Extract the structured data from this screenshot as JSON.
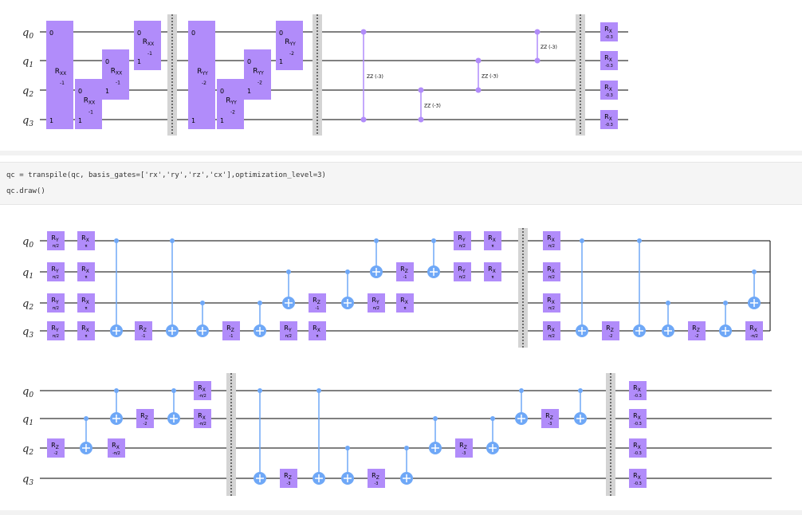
{
  "circuit1": {
    "qubit_labels": [
      "q0",
      "q1",
      "q2",
      "q3"
    ],
    "two_qubit_gates": [
      {
        "name": "RXX",
        "param": "-1",
        "q": [
          0,
          3
        ]
      },
      {
        "name": "RXX",
        "param": "-1",
        "q": [
          2,
          3
        ]
      },
      {
        "name": "RXX",
        "param": "-1",
        "q": [
          1,
          2
        ]
      },
      {
        "name": "RXX",
        "param": "-1",
        "q": [
          0,
          1
        ]
      },
      {
        "name": "RYY",
        "param": "-2",
        "q": [
          0,
          3
        ]
      },
      {
        "name": "RYY",
        "param": "-2",
        "q": [
          2,
          3
        ]
      },
      {
        "name": "RYY",
        "param": "-2",
        "q": [
          1,
          2
        ]
      },
      {
        "name": "RYY",
        "param": "-2",
        "q": [
          0,
          1
        ]
      }
    ],
    "zz_gates": [
      {
        "label": "ZZ (-3)",
        "q": [
          0,
          3
        ]
      },
      {
        "label": "ZZ (-3)",
        "q": [
          2,
          3
        ]
      },
      {
        "label": "ZZ (-3)",
        "q": [
          1,
          2
        ]
      },
      {
        "label": "ZZ (-3)",
        "q": [
          0,
          1
        ]
      }
    ],
    "final_rx": {
      "name": "RX",
      "param": "-0.3"
    }
  },
  "code": {
    "line1": "qc = transpile(qc, basis_gates=['rx','ry','rz','cx'],optimization_level=3)",
    "line2": "qc.draw()"
  },
  "circuit2_row1": {
    "qubit_labels": [
      "q0",
      "q1",
      "q2",
      "q3"
    ],
    "gates": [
      {
        "t": "g",
        "n": "RY",
        "p": "π/2",
        "q": 0,
        "c": 0
      },
      {
        "t": "g",
        "n": "RY",
        "p": "π/2",
        "q": 1,
        "c": 0
      },
      {
        "t": "g",
        "n": "RY",
        "p": "π/2",
        "q": 2,
        "c": 0
      },
      {
        "t": "g",
        "n": "RY",
        "p": "π/2",
        "q": 3,
        "c": 0
      },
      {
        "t": "g",
        "n": "RX",
        "p": "π",
        "q": 0,
        "c": 1
      },
      {
        "t": "g",
        "n": "RX",
        "p": "π",
        "q": 1,
        "c": 1
      },
      {
        "t": "g",
        "n": "RX",
        "p": "π",
        "q": 2,
        "c": 1
      },
      {
        "t": "g",
        "n": "RX",
        "p": "π",
        "q": 3,
        "c": 1
      },
      {
        "t": "cx",
        "ctrl": 0,
        "tgt": 3,
        "c": 2
      },
      {
        "t": "g",
        "n": "RZ",
        "p": "-1",
        "q": 3,
        "c": 3
      },
      {
        "t": "cx",
        "ctrl": 0,
        "tgt": 3,
        "c": 4
      },
      {
        "t": "cx",
        "ctrl": 2,
        "tgt": 3,
        "c": 5
      },
      {
        "t": "g",
        "n": "RZ",
        "p": "-1",
        "q": 3,
        "c": 6
      },
      {
        "t": "cx",
        "ctrl": 2,
        "tgt": 3,
        "c": 7
      },
      {
        "t": "cx",
        "ctrl": 1,
        "tgt": 2,
        "c": 8
      },
      {
        "t": "g",
        "n": "RY",
        "p": "π/2",
        "q": 3,
        "c": 8
      },
      {
        "t": "g",
        "n": "RZ",
        "p": "-1",
        "q": 2,
        "c": 9
      },
      {
        "t": "g",
        "n": "RX",
        "p": "π",
        "q": 3,
        "c": 9
      },
      {
        "t": "cx",
        "ctrl": 1,
        "tgt": 2,
        "c": 10
      },
      {
        "t": "cx",
        "ctrl": 0,
        "tgt": 1,
        "c": 11
      },
      {
        "t": "g",
        "n": "RY",
        "p": "π/2",
        "q": 2,
        "c": 11
      },
      {
        "t": "g",
        "n": "RZ",
        "p": "-1",
        "q": 1,
        "c": 12
      },
      {
        "t": "g",
        "n": "RX",
        "p": "π",
        "q": 2,
        "c": 12
      },
      {
        "t": "cx",
        "ctrl": 0,
        "tgt": 1,
        "c": 13
      },
      {
        "t": "g",
        "n": "RY",
        "p": "π/2",
        "q": 0,
        "c": 14
      },
      {
        "t": "g",
        "n": "RY",
        "p": "π/2",
        "q": 1,
        "c": 14
      },
      {
        "t": "g",
        "n": "RX",
        "p": "π",
        "q": 0,
        "c": 15
      },
      {
        "t": "g",
        "n": "RX",
        "p": "π",
        "q": 1,
        "c": 15
      },
      {
        "t": "barrier",
        "c": 16
      },
      {
        "t": "g",
        "n": "RX",
        "p": "π/2",
        "q": 0,
        "c": 17
      },
      {
        "t": "g",
        "n": "RX",
        "p": "π/2",
        "q": 1,
        "c": 17
      },
      {
        "t": "g",
        "n": "RX",
        "p": "π/2",
        "q": 2,
        "c": 17
      },
      {
        "t": "g",
        "n": "RX",
        "p": "π/2",
        "q": 3,
        "c": 17
      },
      {
        "t": "cx",
        "ctrl": 0,
        "tgt": 3,
        "c": 18
      },
      {
        "t": "g",
        "n": "RZ",
        "p": "-2",
        "q": 3,
        "c": 19
      },
      {
        "t": "cx",
        "ctrl": 0,
        "tgt": 3,
        "c": 20
      },
      {
        "t": "cx",
        "ctrl": 2,
        "tgt": 3,
        "c": 21
      },
      {
        "t": "g",
        "n": "RZ",
        "p": "-2",
        "q": 3,
        "c": 22
      },
      {
        "t": "cx",
        "ctrl": 2,
        "tgt": 3,
        "c": 23
      },
      {
        "t": "cx",
        "ctrl": 1,
        "tgt": 2,
        "c": 24
      },
      {
        "t": "g",
        "n": "RX",
        "p": "-π/2",
        "q": 3,
        "c": 24
      }
    ]
  },
  "circuit2_row2": {
    "qubit_labels": [
      "q0",
      "q1",
      "q2",
      "q3"
    ],
    "gates": [
      {
        "t": "g",
        "n": "RZ",
        "p": "-2",
        "q": 2,
        "c": 0
      },
      {
        "t": "cx",
        "ctrl": 1,
        "tgt": 2,
        "c": 1
      },
      {
        "t": "cx",
        "ctrl": 0,
        "tgt": 1,
        "c": 2
      },
      {
        "t": "g",
        "n": "RX",
        "p": "-π/2",
        "q": 2,
        "c": 2
      },
      {
        "t": "g",
        "n": "RZ",
        "p": "-2",
        "q": 1,
        "c": 3
      },
      {
        "t": "cx",
        "ctrl": 0,
        "tgt": 1,
        "c": 4
      },
      {
        "t": "g",
        "n": "RX",
        "p": "-π/2",
        "q": 0,
        "c": 5
      },
      {
        "t": "g",
        "n": "RX",
        "p": "-π/2",
        "q": 1,
        "c": 5
      },
      {
        "t": "barrier",
        "c": 6
      },
      {
        "t": "cx",
        "ctrl": 0,
        "tgt": 3,
        "c": 7
      },
      {
        "t": "g",
        "n": "RZ",
        "p": "-3",
        "q": 3,
        "c": 8
      },
      {
        "t": "cx",
        "ctrl": 0,
        "tgt": 3,
        "c": 9
      },
      {
        "t": "cx",
        "ctrl": 2,
        "tgt": 3,
        "c": 10
      },
      {
        "t": "g",
        "n": "RZ",
        "p": "-3",
        "q": 3,
        "c": 11
      },
      {
        "t": "cx",
        "ctrl": 2,
        "tgt": 3,
        "c": 12
      },
      {
        "t": "cx",
        "ctrl": 1,
        "tgt": 2,
        "c": 13
      },
      {
        "t": "g",
        "n": "RZ",
        "p": "-3",
        "q": 2,
        "c": 14
      },
      {
        "t": "cx",
        "ctrl": 1,
        "tgt": 2,
        "c": 15
      },
      {
        "t": "cx",
        "ctrl": 0,
        "tgt": 1,
        "c": 16
      },
      {
        "t": "g",
        "n": "RZ",
        "p": "-3",
        "q": 1,
        "c": 17
      },
      {
        "t": "cx",
        "ctrl": 0,
        "tgt": 1,
        "c": 18
      },
      {
        "t": "barrier",
        "c": 19
      },
      {
        "t": "g",
        "n": "RX",
        "p": "-0.3",
        "q": 0,
        "c": 20
      },
      {
        "t": "g",
        "n": "RX",
        "p": "-0.3",
        "q": 1,
        "c": 20
      },
      {
        "t": "g",
        "n": "RX",
        "p": "-0.3",
        "q": 2,
        "c": 20
      },
      {
        "t": "g",
        "n": "RX",
        "p": "-0.3",
        "q": 3,
        "c": 20
      }
    ]
  },
  "colors": {
    "rotation_gate": "#b18cfa",
    "cx_gate": "#6fa8f7",
    "zz_gate": "#b18cfa",
    "wire": "#000000",
    "barrier": "#d4d4d4"
  }
}
